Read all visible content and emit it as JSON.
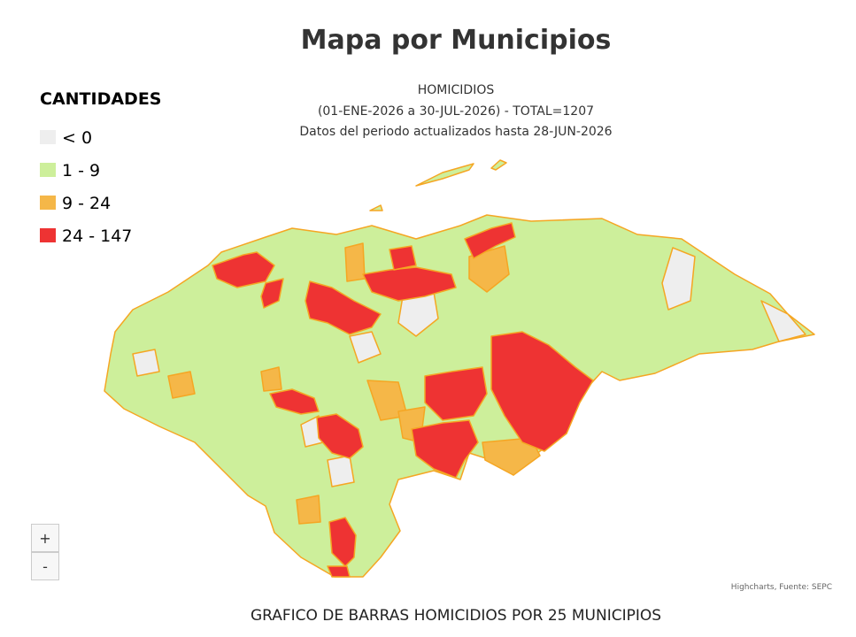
{
  "title": "Mapa por Municipios",
  "subtitle": {
    "line1": "HOMICIDIOS",
    "line2": "(01-ENE-2026 a 30-JUL-2026) - TOTAL=1207",
    "line3": "Datos del periodo actualizados hasta 28-JUN-2026"
  },
  "legend": {
    "title": "CANTIDADES",
    "items": [
      {
        "label": "< 0",
        "color": "#eeeeee"
      },
      {
        "label": "1 - 9",
        "color": "#cdef9b"
      },
      {
        "label": "9 - 24",
        "color": "#f5b748"
      },
      {
        "label": "24 - 147",
        "color": "#ee3333"
      }
    ]
  },
  "zoom": {
    "in": "+",
    "out": "-"
  },
  "credits": "Highcharts, Fuente: SEPC",
  "footer": "GRAFICO DE BARRAS HOMICIDIOS POR 25 MUNICIPIOS"
}
